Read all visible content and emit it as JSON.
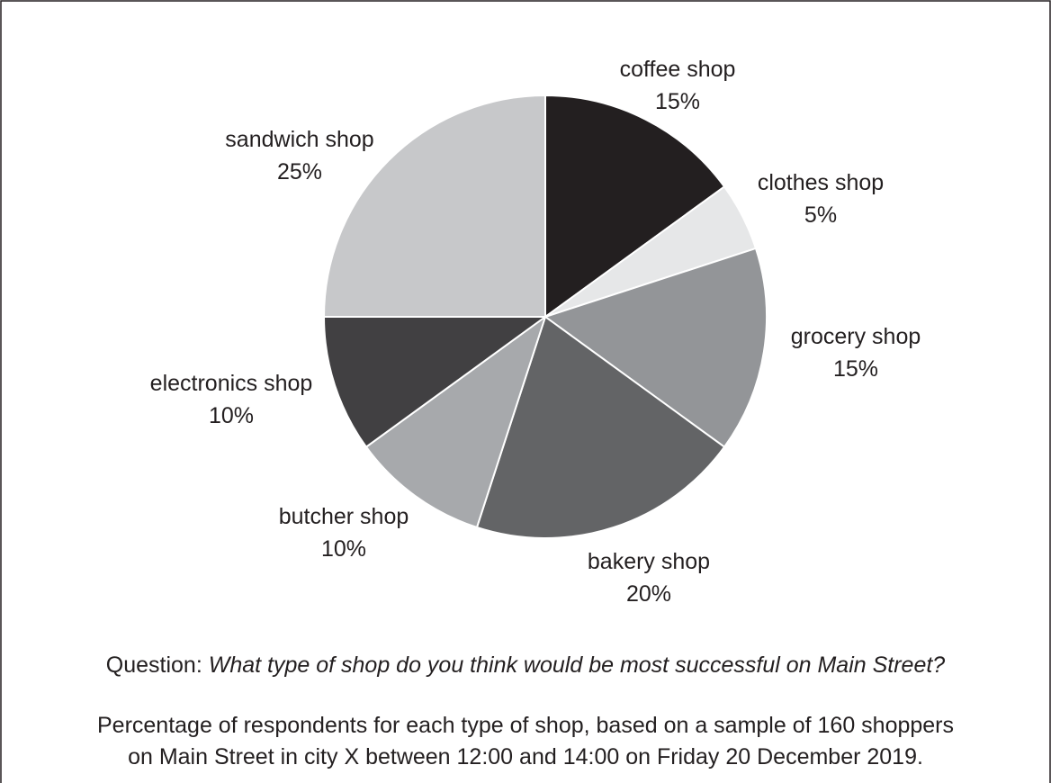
{
  "chart_data": {
    "type": "pie",
    "slices": [
      {
        "label": "coffee shop",
        "value": 15,
        "display": "15%",
        "color": "#231f20"
      },
      {
        "label": "clothes shop",
        "value": 5,
        "display": "5%",
        "color": "#e6e7e8"
      },
      {
        "label": "grocery shop",
        "value": 15,
        "display": "15%",
        "color": "#939598"
      },
      {
        "label": "bakery shop",
        "value": 20,
        "display": "20%",
        "color": "#636466"
      },
      {
        "label": "butcher shop",
        "value": 10,
        "display": "10%",
        "color": "#a7a9ac"
      },
      {
        "label": "electronics shop",
        "value": 10,
        "display": "10%",
        "color": "#414042"
      },
      {
        "label": "sandwich shop",
        "value": 25,
        "display": "25%",
        "color": "#c7c8ca"
      }
    ],
    "start": "12 o'clock",
    "direction": "clockwise",
    "slice_border_color": "#ffffff"
  },
  "question": {
    "prefix": "Question: ",
    "text": "What type of shop do you think would be most successful on Main Street?"
  },
  "caption": {
    "line1": "Percentage of respondents for each type of shop, based on a sample of 160 shoppers",
    "line2": "on Main Street in city X between 12:00 and 14:00 on Friday 20 December 2019."
  },
  "frame_color": "#231f20"
}
